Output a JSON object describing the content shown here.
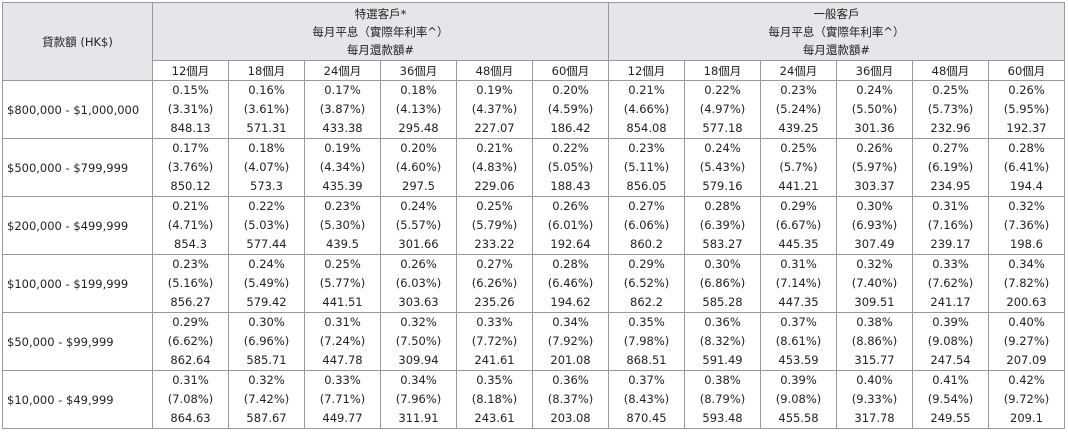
{
  "header": {
    "loan_label": "貸款額 (HK$)",
    "groups": [
      {
        "name": "特選客戶*",
        "line2": "每月平息（實際年利率^）",
        "line3": "每月還款額#"
      },
      {
        "name": "一般客戶",
        "line2": "每月平息（實際年利率^）",
        "line3": "每月還款額#"
      }
    ],
    "terms": [
      "12個月",
      "18個月",
      "24個月",
      "36個月",
      "48個月",
      "60個月"
    ]
  },
  "rows": [
    {
      "label": "$800,000 - $1,000,000",
      "cells": [
        [
          "0.15%",
          "(3.31%)",
          "848.13"
        ],
        [
          "0.16%",
          "(3.61%)",
          "571.31"
        ],
        [
          "0.17%",
          "(3.87%)",
          "433.38"
        ],
        [
          "0.18%",
          "(4.13%)",
          "295.48"
        ],
        [
          "0.19%",
          "(4.37%)",
          "227.07"
        ],
        [
          "0.20%",
          "(4.59%)",
          "186.42"
        ],
        [
          "0.21%",
          "(4.66%)",
          "854.08"
        ],
        [
          "0.22%",
          "(4.97%)",
          "577.18"
        ],
        [
          "0.23%",
          "(5.24%)",
          "439.25"
        ],
        [
          "0.24%",
          "(5.50%)",
          "301.36"
        ],
        [
          "0.25%",
          "(5.73%)",
          "232.96"
        ],
        [
          "0.26%",
          "(5.95%)",
          "192.37"
        ]
      ]
    },
    {
      "label": "$500,000 - $799,999",
      "cells": [
        [
          "0.17%",
          "(3.76%)",
          "850.12"
        ],
        [
          "0.18%",
          "(4.07%)",
          "573.3"
        ],
        [
          "0.19%",
          "(4.34%)",
          "435.39"
        ],
        [
          "0.20%",
          "(4.60%)",
          "297.5"
        ],
        [
          "0.21%",
          "(4.83%)",
          "229.06"
        ],
        [
          "0.22%",
          "(5.05%)",
          "188.43"
        ],
        [
          "0.23%",
          "(5.11%)",
          "856.05"
        ],
        [
          "0.24%",
          "(5.43%)",
          "579.16"
        ],
        [
          "0.25%",
          "(5.7%)",
          "441.21"
        ],
        [
          "0.26%",
          "(5.97%)",
          "303.37"
        ],
        [
          "0.27%",
          "(6.19%)",
          "234.95"
        ],
        [
          "0.28%",
          "(6.41%)",
          "194.4"
        ]
      ]
    },
    {
      "label": "$200,000 - $499,999",
      "cells": [
        [
          "0.21%",
          "(4.71%)",
          "854.3"
        ],
        [
          "0.22%",
          "(5.03%)",
          "577.44"
        ],
        [
          "0.23%",
          "(5.30%)",
          "439.5"
        ],
        [
          "0.24%",
          "(5.57%)",
          "301.66"
        ],
        [
          "0.25%",
          "(5.79%)",
          "233.22"
        ],
        [
          "0.26%",
          "(6.01%)",
          "192.64"
        ],
        [
          "0.27%",
          "(6.06%)",
          "860.2"
        ],
        [
          "0.28%",
          "(6.39%)",
          "583.27"
        ],
        [
          "0.29%",
          "(6.67%)",
          "445.35"
        ],
        [
          "0.30%",
          "(6.93%)",
          "307.49"
        ],
        [
          "0.31%",
          "(7.16%)",
          "239.17"
        ],
        [
          "0.32%",
          "(7.36%)",
          "198.6"
        ]
      ]
    },
    {
      "label": "$100,000 - $199,999",
      "cells": [
        [
          "0.23%",
          "(5.16%)",
          "856.27"
        ],
        [
          "0.24%",
          "(5.49%)",
          "579.42"
        ],
        [
          "0.25%",
          "(5.77%)",
          "441.51"
        ],
        [
          "0.26%",
          "(6.03%)",
          "303.63"
        ],
        [
          "0.27%",
          "(6.26%)",
          "235.26"
        ],
        [
          "0.28%",
          "(6.46%)",
          "194.62"
        ],
        [
          "0.29%",
          "(6.52%)",
          "862.2"
        ],
        [
          "0.30%",
          "(6.86%)",
          "585.28"
        ],
        [
          "0.31%",
          "(7.14%)",
          "447.35"
        ],
        [
          "0.32%",
          "(7.40%)",
          "309.51"
        ],
        [
          "0.33%",
          "(7.62%)",
          "241.17"
        ],
        [
          "0.34%",
          "(7.82%)",
          "200.63"
        ]
      ]
    },
    {
      "label": "$50,000 - $99,999",
      "cells": [
        [
          "0.29%",
          "(6.62%)",
          "862.64"
        ],
        [
          "0.30%",
          "(6.96%)",
          "585.71"
        ],
        [
          "0.31%",
          "(7.24%)",
          "447.78"
        ],
        [
          "0.32%",
          "(7.50%)",
          "309.94"
        ],
        [
          "0.33%",
          "(7.72%)",
          "241.61"
        ],
        [
          "0.34%",
          "(7.92%)",
          "201.08"
        ],
        [
          "0.35%",
          "(7.98%)",
          "868.51"
        ],
        [
          "0.36%",
          "(8.32%)",
          "591.49"
        ],
        [
          "0.37%",
          "(8.61%)",
          "453.59"
        ],
        [
          "0.38%",
          "(8.86%)",
          "315.77"
        ],
        [
          "0.39%",
          "(9.08%)",
          "247.54"
        ],
        [
          "0.40%",
          "(9.27%)",
          "207.09"
        ]
      ]
    },
    {
      "label": "$10,000 - $49,999",
      "cells": [
        [
          "0.31%",
          "(7.08%)",
          "864.63"
        ],
        [
          "0.32%",
          "(7.42%)",
          "587.67"
        ],
        [
          "0.33%",
          "(7.71%)",
          "449.77"
        ],
        [
          "0.34%",
          "(7.96%)",
          "311.91"
        ],
        [
          "0.35%",
          "(8.18%)",
          "243.61"
        ],
        [
          "0.36%",
          "(8.37%)",
          "203.08"
        ],
        [
          "0.37%",
          "(8.43%)",
          "870.45"
        ],
        [
          "0.38%",
          "(8.79%)",
          "593.48"
        ],
        [
          "0.39%",
          "(9.08%)",
          "455.58"
        ],
        [
          "0.40%",
          "(9.33%)",
          "317.78"
        ],
        [
          "0.41%",
          "(9.54%)",
          "249.55"
        ],
        [
          "0.42%",
          "(9.72%)",
          "209.1"
        ]
      ]
    }
  ]
}
